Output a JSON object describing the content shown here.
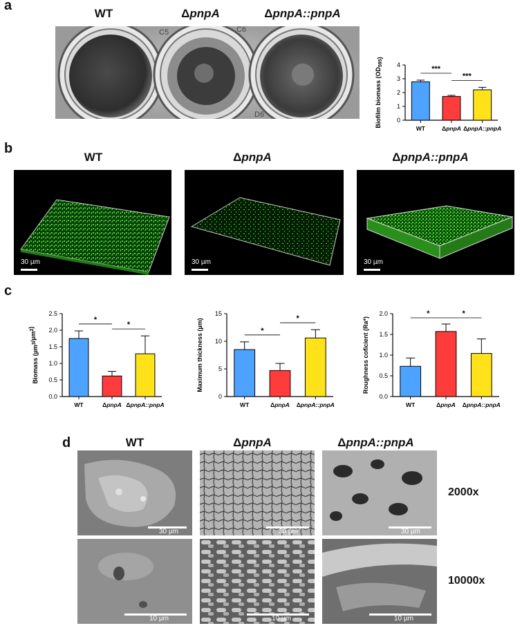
{
  "panels": {
    "a": {
      "letter": "a"
    },
    "b": {
      "letter": "b"
    },
    "c": {
      "letter": "c"
    },
    "d": {
      "letter": "d"
    }
  },
  "strains": {
    "wt": "WT",
    "delta": "Δ",
    "gene": "pnpA",
    "comp_gene": "pnpA::pnpA"
  },
  "plate_labels": [
    "C5",
    "C6",
    "D6"
  ],
  "scale_labels": {
    "b": "30 µm",
    "d_2000": "30 µm",
    "d_10000": "10 µm"
  },
  "magnifications": [
    "2000x",
    "10000x"
  ],
  "colors": {
    "wt": "#4da3ff",
    "pnpA": "#ff3c3c",
    "comp": "#ffe21a",
    "biofilm": "#3fdc2a"
  },
  "chart_data": [
    {
      "id": "a-biofilm",
      "type": "bar",
      "categories": [
        "WT",
        "ΔpnpA",
        "ΔpnpA::pnpA"
      ],
      "values": [
        2.78,
        1.72,
        2.2
      ],
      "errors": [
        0.12,
        0.08,
        0.18
      ],
      "ylabel": "Biofilm biomass (OD595)",
      "ylim": [
        0,
        4
      ],
      "yticks": [
        0,
        1,
        2,
        3,
        4
      ],
      "significance": [
        {
          "from": 0,
          "to": 1,
          "label": "***"
        },
        {
          "from": 1,
          "to": 2,
          "label": "***"
        }
      ]
    },
    {
      "id": "c-biomass",
      "type": "bar",
      "categories": [
        "WT",
        "ΔpnpA",
        "ΔpnpA::pnpA"
      ],
      "values": [
        1.75,
        0.62,
        1.29
      ],
      "errors": [
        0.23,
        0.14,
        0.54
      ],
      "ylabel": "Biomass (µm3/µm2)",
      "ylim": [
        0,
        2.5
      ],
      "yticks": [
        0.0,
        0.5,
        1.0,
        1.5,
        2.0,
        2.5
      ],
      "significance": [
        {
          "from": 0,
          "to": 1,
          "label": "*"
        },
        {
          "from": 1,
          "to": 2,
          "label": "*"
        }
      ]
    },
    {
      "id": "c-thickness",
      "type": "bar",
      "categories": [
        "WT",
        "ΔpnpA",
        "ΔpnpA::pnpA"
      ],
      "values": [
        8.5,
        4.7,
        10.6
      ],
      "errors": [
        1.4,
        1.3,
        1.5
      ],
      "ylabel": "Maximum thickness (µm)",
      "ylim": [
        0,
        15
      ],
      "yticks": [
        0,
        5,
        10,
        15
      ],
      "significance": [
        {
          "from": 0,
          "to": 1,
          "label": "*"
        },
        {
          "from": 1,
          "to": 2,
          "label": "*"
        }
      ]
    },
    {
      "id": "c-roughness",
      "type": "bar",
      "categories": [
        "WT",
        "ΔpnpA",
        "ΔpnpA::pnpA"
      ],
      "values": [
        0.73,
        1.57,
        1.04
      ],
      "errors": [
        0.2,
        0.18,
        0.35
      ],
      "ylabel": "Roughness coficient (Ra*)",
      "ylim": [
        0,
        2.0
      ],
      "yticks": [
        0.0,
        0.5,
        1.0,
        1.5,
        2.0
      ],
      "significance": [
        {
          "from": 0,
          "to": 1,
          "label": "*"
        },
        {
          "from": 1,
          "to": 2,
          "label": "*"
        }
      ]
    }
  ]
}
